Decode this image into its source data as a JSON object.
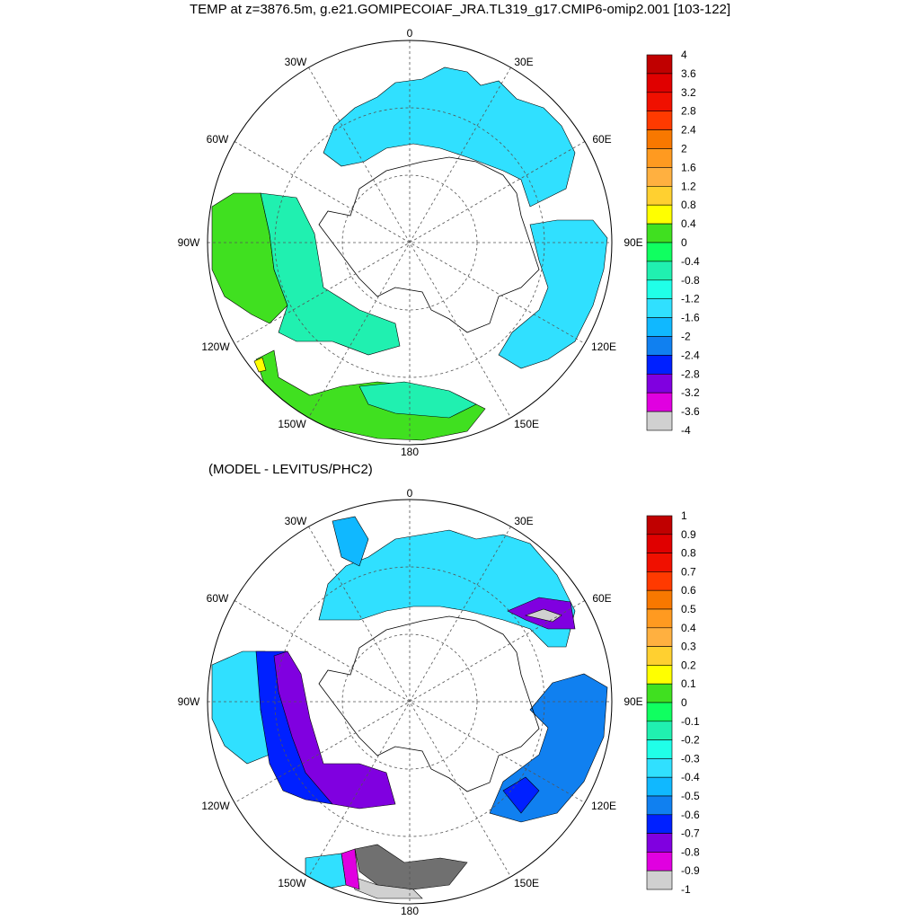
{
  "title": "TEMP at z=3876.5m, g.e21.GOMIPECOIAF_JRA.TL319_g17.CMIP6-omip2.001 [103-122]",
  "subtitle": "(MODEL - LEVITUS/PHC2)",
  "lon_labels": {
    "deg0": "0",
    "deg30E": "30E",
    "deg60E": "60E",
    "deg90E": "90E",
    "deg120E": "120E",
    "deg150E": "150E",
    "deg180": "180",
    "deg150W": "150W",
    "deg120W": "120W",
    "deg90W": "90W",
    "deg60W": "60W",
    "deg30W": "30W"
  },
  "colorbar_top": {
    "labels": [
      "4",
      "3.6",
      "3.2",
      "2.8",
      "2.4",
      "2",
      "1.6",
      "1.2",
      "0.8",
      "0.4",
      "0",
      "-0.4",
      "-0.8",
      "-1.2",
      "-1.6",
      "-2",
      "-2.4",
      "-2.8",
      "-3.2",
      "-3.6",
      "-4"
    ],
    "colors": [
      "#c00000",
      "#e00000",
      "#f01000",
      "#ff3a00",
      "#f87800",
      "#ff9a20",
      "#ffb040",
      "#ffd030",
      "#ffff00",
      "#40e020",
      "#10ff60",
      "#20f0b0",
      "#20ffe8",
      "#30e0ff",
      "#10b8ff",
      "#1080f0",
      "#0020ff",
      "#8000e0",
      "#e000e0",
      "#d0d0d0",
      "#707070"
    ]
  },
  "colorbar_bottom": {
    "labels": [
      "1",
      "0.9",
      "0.8",
      "0.7",
      "0.6",
      "0.5",
      "0.4",
      "0.3",
      "0.2",
      "0.1",
      "0",
      "-0.1",
      "-0.2",
      "-0.3",
      "-0.4",
      "-0.5",
      "-0.6",
      "-0.7",
      "-0.8",
      "-0.9",
      "-1"
    ],
    "colors": [
      "#c00000",
      "#e00000",
      "#f01000",
      "#ff3a00",
      "#f87800",
      "#ff9a20",
      "#ffb040",
      "#ffd030",
      "#ffff00",
      "#40e020",
      "#10ff60",
      "#20f0b0",
      "#20ffe8",
      "#30e0ff",
      "#10b8ff",
      "#1080f0",
      "#0020ff",
      "#8000e0",
      "#e000e0",
      "#d0d0d0",
      "#707070"
    ]
  }
}
